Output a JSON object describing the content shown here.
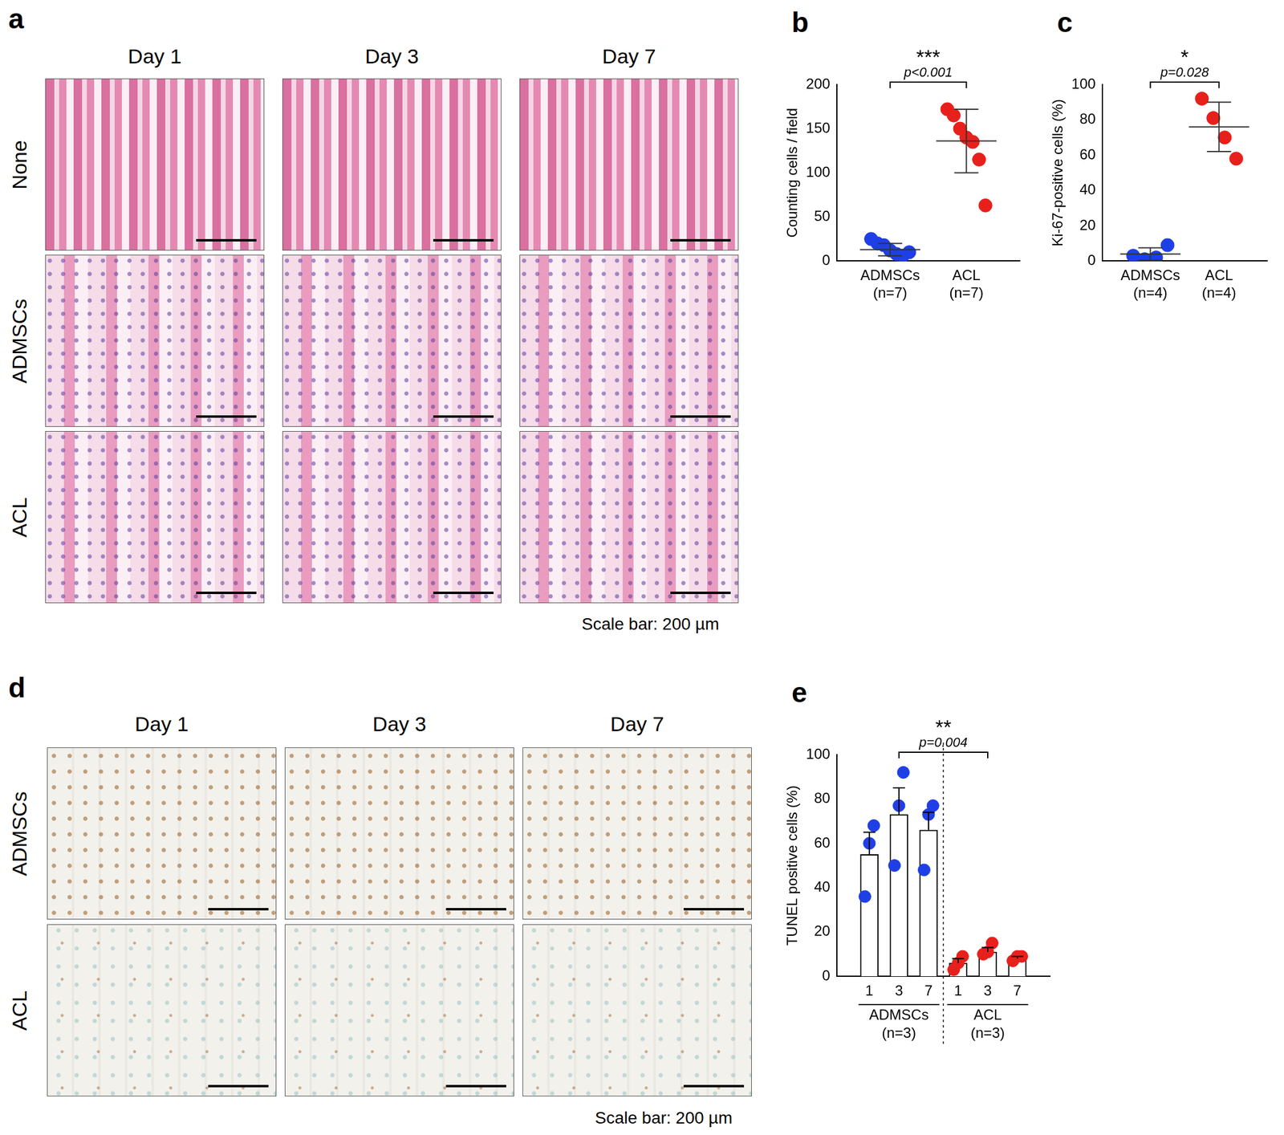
{
  "figure": {
    "a": {
      "panel_label": "a",
      "columns": [
        "Day 1",
        "Day 3",
        "Day 7"
      ],
      "rows": [
        "None",
        "ADMSCs",
        "ACL"
      ],
      "scale_bar": "Scale bar: 200 µm"
    },
    "d": {
      "panel_label": "d",
      "columns": [
        "Day 1",
        "Day 3",
        "Day 7"
      ],
      "rows": [
        "ADMSCs",
        "ACL"
      ],
      "scale_bar": "Scale bar: 200 µm"
    }
  },
  "chart_data": [
    {
      "panel_label": "b",
      "type": "scatter",
      "y_label": "Counting cells / field",
      "categories": [
        "ADMSCs\n(n=7)",
        "ACL\n(n=7)"
      ],
      "values": [
        [
          25,
          20,
          18,
          12,
          8,
          6,
          10
        ],
        [
          172,
          165,
          150,
          140,
          135,
          115,
          63
        ]
      ],
      "colors": [
        "#1f3fe6",
        "#e8201c"
      ],
      "mean": [
        13,
        136
      ],
      "sd": [
        7,
        36
      ],
      "significance": {
        "stars": "***",
        "p": "p<0.001"
      },
      "ylim": [
        0,
        200
      ],
      "yticks": [
        0,
        50,
        100,
        150,
        200
      ],
      "grid": false
    },
    {
      "panel_label": "c",
      "type": "scatter",
      "y_label": "Ki-67-positive cells (%)",
      "categories": [
        "ADMSCs\n(n=4)",
        "ACL\n(n=4)"
      ],
      "values": [
        [
          3,
          1,
          2,
          9
        ],
        [
          92,
          81,
          70,
          58
        ]
      ],
      "colors": [
        "#1f3fe6",
        "#e8201c"
      ],
      "mean": [
        4,
        76
      ],
      "sd": [
        3.5,
        14
      ],
      "significance": {
        "stars": "*",
        "p": "p=0.028"
      },
      "ylim": [
        0,
        100
      ],
      "yticks": [
        0,
        20,
        40,
        60,
        80,
        100
      ],
      "grid": false
    },
    {
      "panel_label": "e",
      "type": "bar",
      "y_label": "TUNEL positive cells (%)",
      "groups": [
        {
          "label": "ADMSCs\n(n=3)",
          "categories": [
            "1",
            "3",
            "7"
          ],
          "values": [
            55,
            73,
            66
          ],
          "error": [
            10,
            12,
            8
          ],
          "points": [
            [
              36,
              60,
              68
            ],
            [
              50,
              77,
              92
            ],
            [
              48,
              73,
              77
            ]
          ],
          "color": "#1f3fe6"
        },
        {
          "label": "ACL\n(n=3)",
          "categories": [
            "1",
            "3",
            "7"
          ],
          "values": [
            6,
            11,
            8
          ],
          "error": [
            2,
            2,
            1
          ],
          "points": [
            [
              3,
              6,
              9
            ],
            [
              10,
              11,
              15
            ],
            [
              7,
              9,
              9
            ]
          ],
          "color": "#e8201c"
        }
      ],
      "significance": {
        "stars": "**",
        "p": "p=0.004"
      },
      "ylim": [
        0,
        100
      ],
      "yticks": [
        0,
        20,
        40,
        60,
        80,
        100
      ],
      "grid": false
    }
  ]
}
